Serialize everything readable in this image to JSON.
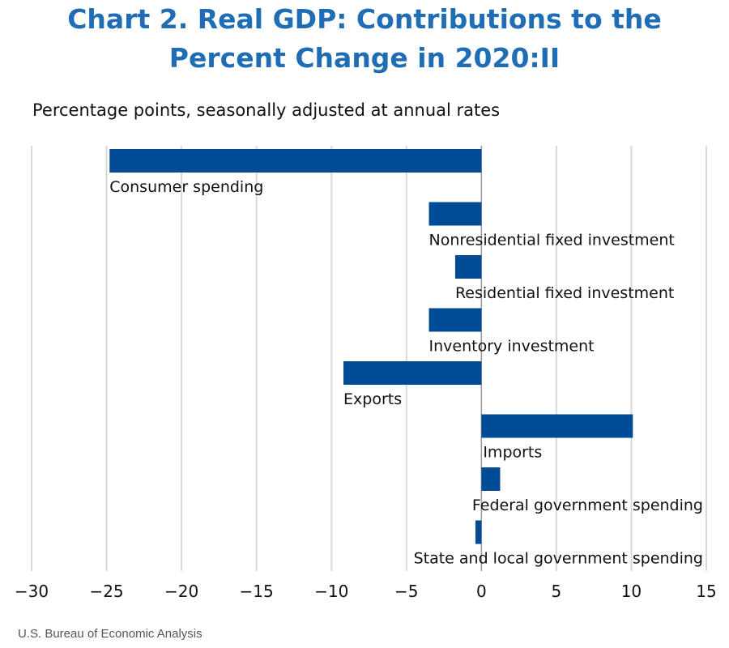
{
  "title_line1": "Chart 2. Real GDP: Contributions to the",
  "title_line2": "Percent Change in 2020:II",
  "subtitle": "Percentage points, seasonally adjusted at annual rates",
  "source": "U.S. Bureau of Economic Analysis",
  "colors": {
    "bar": "#004b96",
    "title": "#1f6eb5",
    "grid": "#d9d9d9",
    "zero_axis": "#999999"
  },
  "chart_data": {
    "type": "bar",
    "orientation": "horizontal",
    "categories": [
      "Consumer spending",
      "Nonresidential fixed investment",
      "Residential fixed investment",
      "Inventory investment",
      "Exports",
      "Imports",
      "Federal government spending",
      "State and local government spending"
    ],
    "values": [
      -24.8,
      -3.5,
      -1.75,
      -3.5,
      -9.2,
      10.1,
      1.25,
      -0.4
    ],
    "xlim": [
      -30,
      15
    ],
    "xticks": [
      -30,
      -25,
      -20,
      -15,
      -10,
      -5,
      0,
      5,
      10,
      15
    ],
    "xtick_labels": [
      "−30",
      "−25",
      "−20",
      "−15",
      "−10",
      "−5",
      "0",
      "5",
      "10",
      "15"
    ],
    "grid": true,
    "legend": "none"
  }
}
